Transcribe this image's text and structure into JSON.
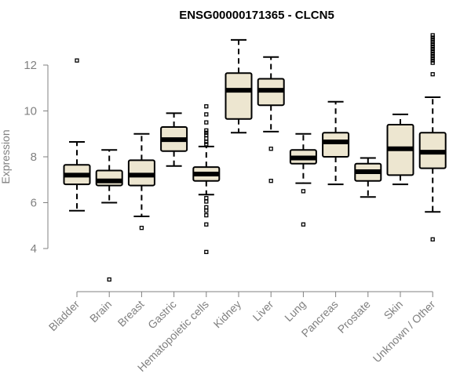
{
  "chart_data": {
    "type": "boxplot",
    "title": "ENSG00000171365 - CLCN5",
    "xlabel": "",
    "ylabel": "Expression",
    "ylim": [
      2.5,
      13.5
    ],
    "yticks": [
      4,
      6,
      8,
      10,
      12
    ],
    "colors": {
      "box_fill": "#ede6d0",
      "box_stroke": "#000000",
      "axis": "#808080"
    },
    "categories": [
      "Bladder",
      "Brain",
      "Breast",
      "Gastric",
      "Hematopoietic cells",
      "Kidney",
      "Liver",
      "Lung",
      "Pancreas",
      "Prostate",
      "Skin",
      "Unknown / Other"
    ],
    "boxes": [
      {
        "category": "Bladder",
        "whisker_low": 5.65,
        "q1": 6.8,
        "median": 7.2,
        "q3": 7.65,
        "whisker_high": 8.65,
        "outliers": [
          12.2
        ]
      },
      {
        "category": "Brain",
        "whisker_low": 6.0,
        "q1": 6.75,
        "median": 6.95,
        "q3": 7.4,
        "whisker_high": 8.3,
        "outliers": [
          2.65
        ]
      },
      {
        "category": "Breast",
        "whisker_low": 5.4,
        "q1": 6.75,
        "median": 7.2,
        "q3": 7.85,
        "whisker_high": 9.0,
        "outliers": [
          4.9
        ]
      },
      {
        "category": "Gastric",
        "whisker_low": 7.6,
        "q1": 8.25,
        "median": 8.75,
        "q3": 9.3,
        "whisker_high": 9.9,
        "outliers": []
      },
      {
        "category": "Hematopoietic cells",
        "whisker_low": 6.35,
        "q1": 6.95,
        "median": 7.25,
        "q3": 7.55,
        "whisker_high": 8.45,
        "outliers": [
          3.85,
          5.05,
          5.45,
          5.65,
          5.8,
          6.05,
          6.2,
          8.55,
          8.65,
          8.8,
          8.95,
          9.05,
          9.15,
          9.5,
          9.85,
          10.2
        ]
      },
      {
        "category": "Kidney",
        "whisker_low": 9.05,
        "q1": 9.65,
        "median": 10.9,
        "q3": 11.65,
        "whisker_high": 13.1,
        "outliers": []
      },
      {
        "category": "Liver",
        "whisker_low": 9.1,
        "q1": 10.25,
        "median": 10.9,
        "q3": 11.4,
        "whisker_high": 12.35,
        "outliers": [
          8.35,
          6.95
        ]
      },
      {
        "category": "Lung",
        "whisker_low": 6.85,
        "q1": 7.7,
        "median": 7.95,
        "q3": 8.3,
        "whisker_high": 9.0,
        "outliers": [
          6.5,
          5.05
        ]
      },
      {
        "category": "Pancreas",
        "whisker_low": 6.8,
        "q1": 8.0,
        "median": 8.65,
        "q3": 9.05,
        "whisker_high": 10.4,
        "outliers": []
      },
      {
        "category": "Prostate",
        "whisker_low": 6.25,
        "q1": 6.95,
        "median": 7.35,
        "q3": 7.7,
        "whisker_high": 7.95,
        "outliers": []
      },
      {
        "category": "Skin",
        "whisker_low": 6.8,
        "q1": 7.2,
        "median": 8.35,
        "q3": 9.4,
        "whisker_high": 9.85,
        "outliers": []
      },
      {
        "category": "Unknown / Other",
        "whisker_low": 5.6,
        "q1": 7.5,
        "median": 8.2,
        "q3": 9.05,
        "whisker_high": 10.6,
        "outliers": [
          4.4,
          11.6,
          12.1,
          12.2,
          12.3,
          12.4,
          12.5,
          12.6,
          12.7,
          12.8,
          12.9,
          13.0,
          13.1,
          13.2,
          13.3
        ]
      }
    ]
  }
}
